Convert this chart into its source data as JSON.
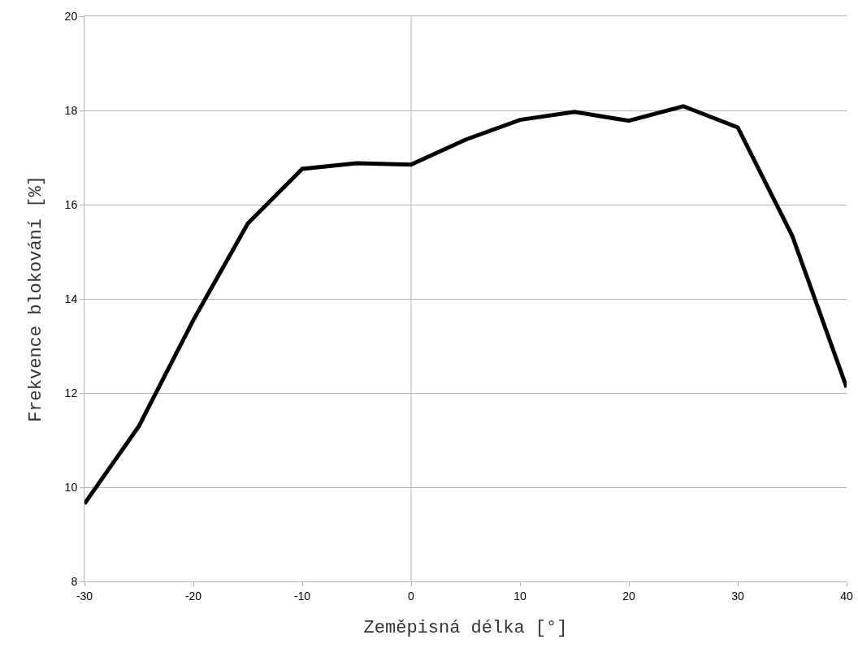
{
  "chart_data": {
    "type": "line",
    "xlabel": "Zeměpisná délka [°]",
    "ylabel": "Frekvence blokování [%]",
    "x": [
      -30,
      -25,
      -20,
      -15,
      -10,
      -5,
      0,
      5,
      10,
      15,
      20,
      25,
      30,
      35,
      40
    ],
    "series": [
      {
        "color": "#000000",
        "values": [
          9.65,
          11.3,
          13.55,
          15.6,
          16.76,
          16.88,
          16.85,
          17.38,
          17.8,
          17.97,
          17.78,
          18.09,
          17.64,
          15.34,
          12.12
        ]
      }
    ],
    "xlim": [
      -30,
      40
    ],
    "xticks": [
      -30,
      -20,
      -10,
      0,
      10,
      20,
      30,
      40
    ],
    "ylim": [
      8,
      20
    ],
    "yticks": [
      8,
      10,
      12,
      14,
      16,
      18,
      20
    ],
    "grid": "y",
    "marker": "none",
    "line_style": "solid",
    "ref_lines": [
      {
        "axis": "x",
        "value": 0,
        "color": "#b3b3b3",
        "line_style": "solid"
      }
    ]
  }
}
